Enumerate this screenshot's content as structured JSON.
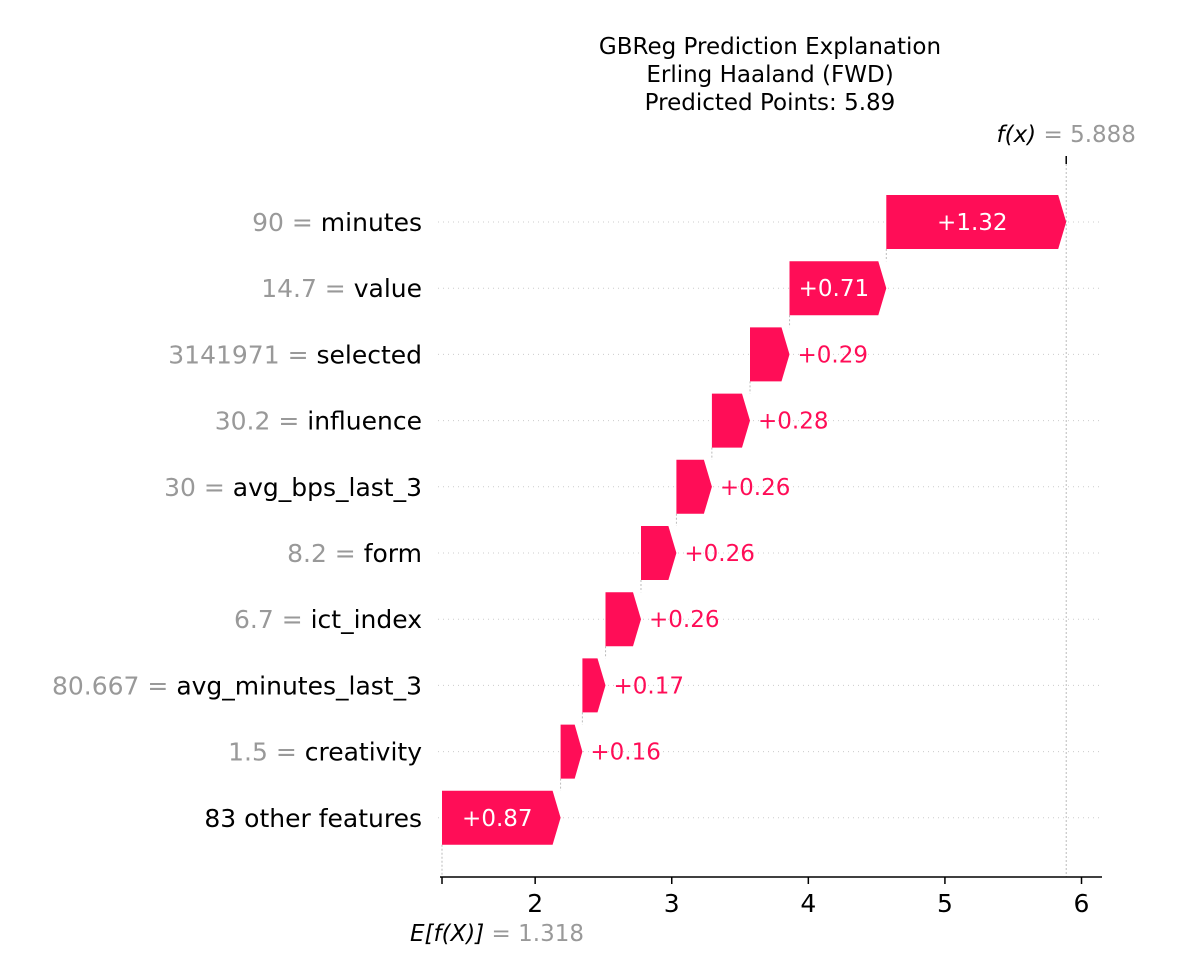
{
  "chart_data": {
    "type": "waterfall",
    "title_lines": [
      "GBReg Prediction Explanation",
      "Erling Haaland (FWD)",
      "Predicted Points: 5.89"
    ],
    "base_value": 1.318,
    "base_value_label": "1.318",
    "base_label_prefix": "E[f(X)]",
    "output_value": 5.888,
    "output_value_label": "5.888",
    "output_label_prefix": "f(x)",
    "xlim": [
      1.318,
      6.15
    ],
    "xticks": [
      2,
      3,
      4,
      5,
      6
    ],
    "features": [
      {
        "value": "90",
        "name": "minutes",
        "contribution": 1.32,
        "label": "+1.32"
      },
      {
        "value": "14.7",
        "name": "value",
        "contribution": 0.71,
        "label": "+0.71"
      },
      {
        "value": "3141971",
        "name": "selected",
        "contribution": 0.29,
        "label": "+0.29"
      },
      {
        "value": "30.2",
        "name": "influence",
        "contribution": 0.28,
        "label": "+0.28"
      },
      {
        "value": "30",
        "name": "avg_bps_last_3",
        "contribution": 0.26,
        "label": "+0.26"
      },
      {
        "value": "8.2",
        "name": "form",
        "contribution": 0.26,
        "label": "+0.26"
      },
      {
        "value": "6.7",
        "name": "ict_index",
        "contribution": 0.26,
        "label": "+0.26"
      },
      {
        "value": "80.667",
        "name": "avg_minutes_last_3",
        "contribution": 0.17,
        "label": "+0.17"
      },
      {
        "value": "1.5",
        "name": "creativity",
        "contribution": 0.16,
        "label": "+0.16"
      },
      {
        "value": "",
        "name": "83 other features",
        "contribution": 0.87,
        "label": "+0.87"
      }
    ],
    "positive_color": "#ff0d57",
    "value_color": "#999999",
    "grid": true
  }
}
